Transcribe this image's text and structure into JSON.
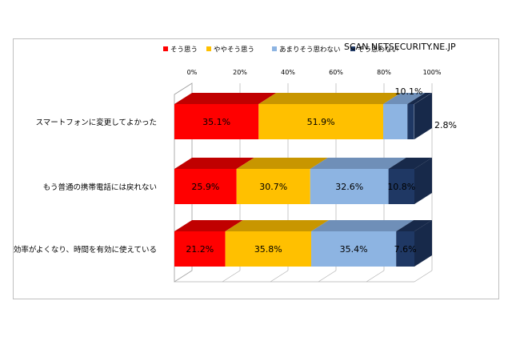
{
  "watermark": "SCAN.NETSECURITY.NE.JP",
  "chart_data": {
    "type": "bar",
    "orientation": "horizontal",
    "stacked": "100%",
    "three_d": true,
    "title": "",
    "xlabel": "",
    "ylabel": "",
    "xlim": [
      0,
      100
    ],
    "x_ticks": [
      "0%",
      "20%",
      "40%",
      "60%",
      "80%",
      "100%"
    ],
    "legend_position": "top-right",
    "categories": [
      "スマートフォンに変更してよかった",
      "もう普通の携帯電話には戻れない",
      "効率がよくなり、時間を有効に使えている"
    ],
    "series": [
      {
        "name": "そう思う",
        "color": "#ff0000",
        "top_color": "#c00000",
        "values": [
          35.1,
          25.9,
          21.2
        ],
        "labels": [
          "35.1%",
          "25.9%",
          "21.2%"
        ]
      },
      {
        "name": "ややそう思う",
        "color": "#ffc000",
        "top_color": "#c89600",
        "values": [
          51.9,
          30.7,
          35.8
        ],
        "labels": [
          "51.9%",
          "30.7%",
          "35.8%"
        ]
      },
      {
        "name": "あまりそう思わない",
        "color": "#8db4e2",
        "top_color": "#6f8fb8",
        "values": [
          10.1,
          32.6,
          35.4
        ],
        "labels": [
          "10.1%",
          "32.6%",
          "35.4%"
        ]
      },
      {
        "name": "そう思わない",
        "color": "#1f3864",
        "top_color": "#17294a",
        "values": [
          2.8,
          10.8,
          7.6
        ],
        "labels": [
          "2.8%",
          "10.8%",
          "7.6%"
        ]
      }
    ]
  }
}
